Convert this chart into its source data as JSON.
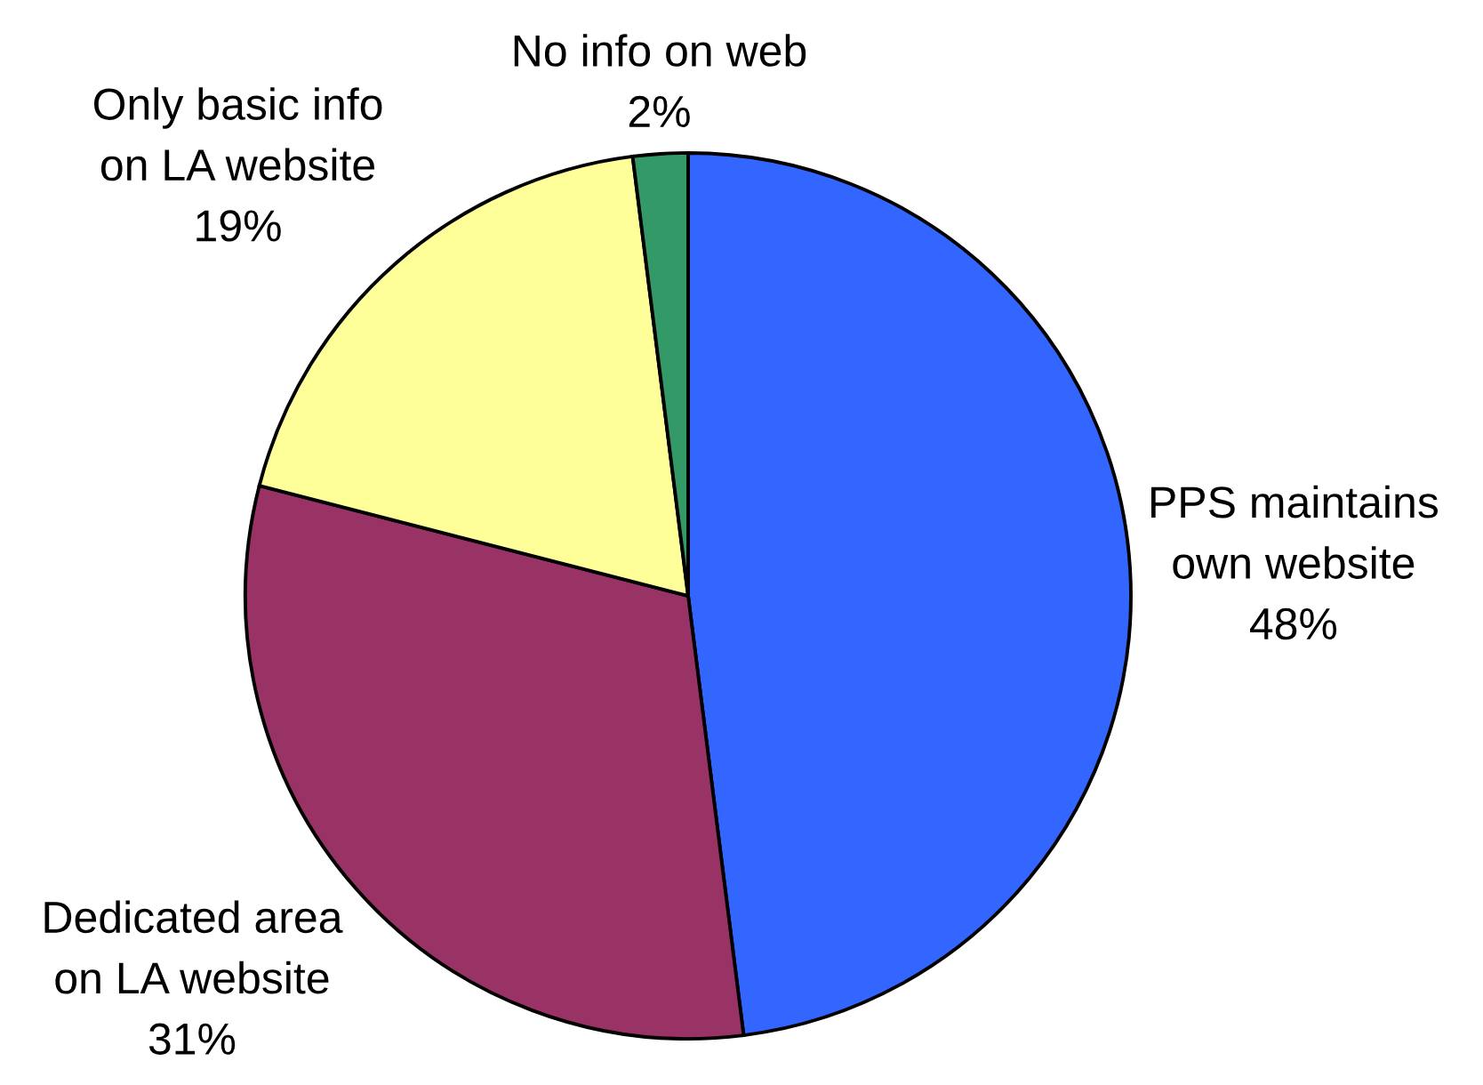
{
  "chart_data": {
    "type": "pie",
    "categories": [
      "PPS maintains\nown website",
      "Dedicated area\non LA website",
      "Only basic info\non LA website",
      "No info on web"
    ],
    "values": [
      48,
      31,
      19,
      2
    ],
    "value_labels": [
      "48%",
      "31%",
      "19%",
      "2%"
    ],
    "colors": [
      "#3366ff",
      "#993366",
      "#ffff99",
      "#339966"
    ]
  }
}
